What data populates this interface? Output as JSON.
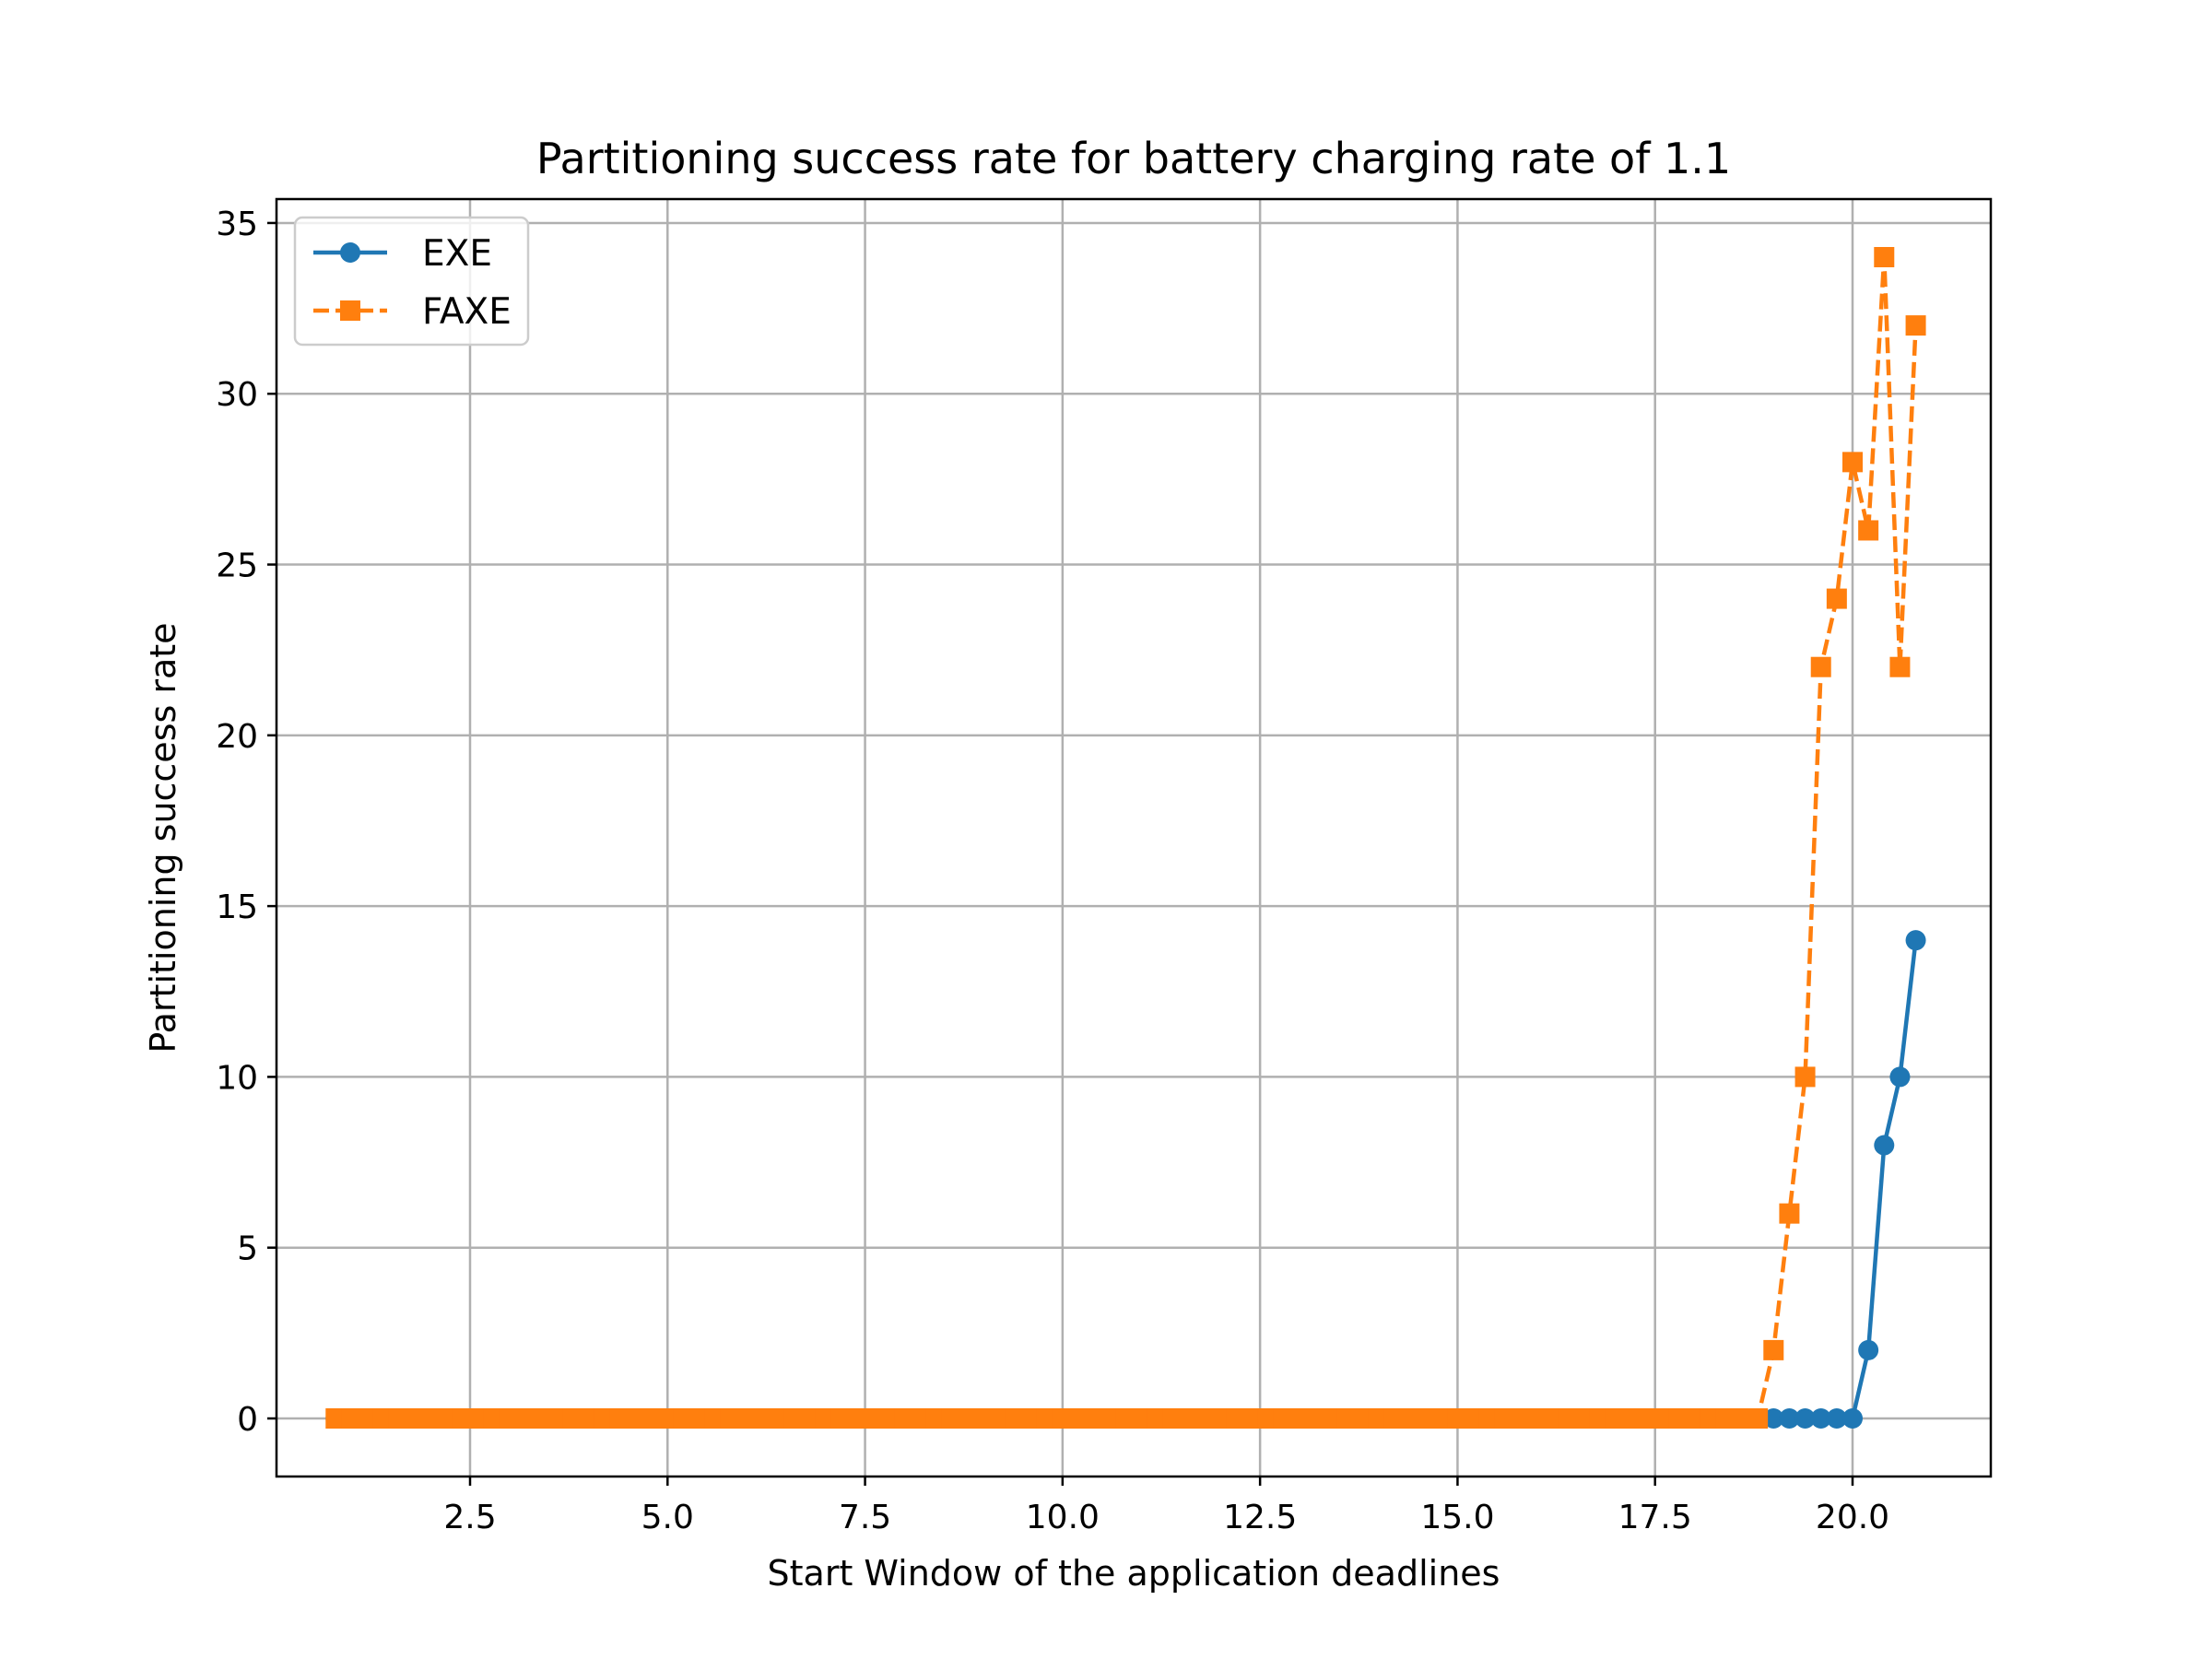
{
  "chart_data": {
    "type": "line",
    "title": "Partitioning success rate for battery charging rate of 1.1",
    "xlabel": "Start Window of the application deadlines",
    "ylabel": "Partitioning success rate",
    "xlim": [
      0.05,
      21.75
    ],
    "ylim": [
      -1.7,
      35.7
    ],
    "xticks": [
      2.5,
      5.0,
      7.5,
      10.0,
      12.5,
      15.0,
      17.5,
      20.0
    ],
    "xtick_labels": [
      "2.5",
      "5.0",
      "7.5",
      "10.0",
      "12.5",
      "15.0",
      "17.5",
      "20.0"
    ],
    "yticks": [
      0,
      5,
      10,
      15,
      20,
      25,
      30,
      35
    ],
    "ytick_labels": [
      "0",
      "5",
      "10",
      "15",
      "20",
      "25",
      "30",
      "35"
    ],
    "grid": true,
    "legend_position": "upper-left",
    "series": [
      {
        "name": "EXE",
        "color": "#1f77b4",
        "line_style": "solid",
        "marker": "circle",
        "x": [
          0.8,
          1.0,
          1.2,
          1.4,
          1.6,
          1.8,
          2.0,
          2.2,
          2.4,
          2.6,
          2.8,
          3.0,
          3.2,
          3.4,
          3.6,
          3.8,
          4.0,
          4.2,
          4.4,
          4.6,
          4.8,
          5.0,
          5.2,
          5.4,
          5.6,
          5.8,
          6.0,
          6.2,
          6.4,
          6.6,
          6.8,
          7.0,
          7.2,
          7.4,
          7.6,
          7.8,
          8.0,
          8.2,
          8.4,
          8.6,
          8.8,
          9.0,
          9.2,
          9.4,
          9.6,
          9.8,
          10.0,
          10.2,
          10.4,
          10.6,
          10.8,
          11.0,
          11.2,
          11.4,
          11.6,
          11.8,
          12.0,
          12.2,
          12.4,
          12.6,
          12.8,
          13.0,
          13.2,
          13.4,
          13.6,
          13.8,
          14.0,
          14.2,
          14.4,
          14.6,
          14.8,
          15.0,
          15.2,
          15.4,
          15.6,
          15.8,
          16.0,
          16.2,
          16.4,
          16.6,
          16.8,
          17.0,
          17.2,
          17.4,
          17.6,
          17.8,
          18.0,
          18.2,
          18.4,
          18.6,
          18.8,
          19.0,
          19.2,
          19.4,
          19.6,
          19.8,
          20.0,
          20.2,
          20.4,
          20.6,
          20.8
        ],
        "y": [
          0,
          0,
          0,
          0,
          0,
          0,
          0,
          0,
          0,
          0,
          0,
          0,
          0,
          0,
          0,
          0,
          0,
          0,
          0,
          0,
          0,
          0,
          0,
          0,
          0,
          0,
          0,
          0,
          0,
          0,
          0,
          0,
          0,
          0,
          0,
          0,
          0,
          0,
          0,
          0,
          0,
          0,
          0,
          0,
          0,
          0,
          0,
          0,
          0,
          0,
          0,
          0,
          0,
          0,
          0,
          0,
          0,
          0,
          0,
          0,
          0,
          0,
          0,
          0,
          0,
          0,
          0,
          0,
          0,
          0,
          0,
          0,
          0,
          0,
          0,
          0,
          0,
          0,
          0,
          0,
          0,
          0,
          0,
          0,
          0,
          0,
          0,
          0,
          0,
          0,
          0,
          0,
          0,
          0,
          0,
          0,
          0,
          2,
          8,
          10,
          14
        ]
      },
      {
        "name": "FAXE",
        "color": "#ff7f0e",
        "line_style": "dashed",
        "marker": "square",
        "x": [
          0.8,
          1.0,
          1.2,
          1.4,
          1.6,
          1.8,
          2.0,
          2.2,
          2.4,
          2.6,
          2.8,
          3.0,
          3.2,
          3.4,
          3.6,
          3.8,
          4.0,
          4.2,
          4.4,
          4.6,
          4.8,
          5.0,
          5.2,
          5.4,
          5.6,
          5.8,
          6.0,
          6.2,
          6.4,
          6.6,
          6.8,
          7.0,
          7.2,
          7.4,
          7.6,
          7.8,
          8.0,
          8.2,
          8.4,
          8.6,
          8.8,
          9.0,
          9.2,
          9.4,
          9.6,
          9.8,
          10.0,
          10.2,
          10.4,
          10.6,
          10.8,
          11.0,
          11.2,
          11.4,
          11.6,
          11.8,
          12.0,
          12.2,
          12.4,
          12.6,
          12.8,
          13.0,
          13.2,
          13.4,
          13.6,
          13.8,
          14.0,
          14.2,
          14.4,
          14.6,
          14.8,
          15.0,
          15.2,
          15.4,
          15.6,
          15.8,
          16.0,
          16.2,
          16.4,
          16.6,
          16.8,
          17.0,
          17.2,
          17.4,
          17.6,
          17.8,
          18.0,
          18.2,
          18.4,
          18.6,
          18.8,
          19.0,
          19.2,
          19.4,
          19.6,
          19.8,
          20.0,
          20.2,
          20.4,
          20.6,
          20.8
        ],
        "y": [
          0,
          0,
          0,
          0,
          0,
          0,
          0,
          0,
          0,
          0,
          0,
          0,
          0,
          0,
          0,
          0,
          0,
          0,
          0,
          0,
          0,
          0,
          0,
          0,
          0,
          0,
          0,
          0,
          0,
          0,
          0,
          0,
          0,
          0,
          0,
          0,
          0,
          0,
          0,
          0,
          0,
          0,
          0,
          0,
          0,
          0,
          0,
          0,
          0,
          0,
          0,
          0,
          0,
          0,
          0,
          0,
          0,
          0,
          0,
          0,
          0,
          0,
          0,
          0,
          0,
          0,
          0,
          0,
          0,
          0,
          0,
          0,
          0,
          0,
          0,
          0,
          0,
          0,
          0,
          0,
          0,
          0,
          0,
          0,
          0,
          0,
          0,
          0,
          0,
          0,
          0,
          2,
          6,
          10,
          22,
          24,
          28,
          26,
          34,
          22,
          32
        ]
      }
    ]
  }
}
